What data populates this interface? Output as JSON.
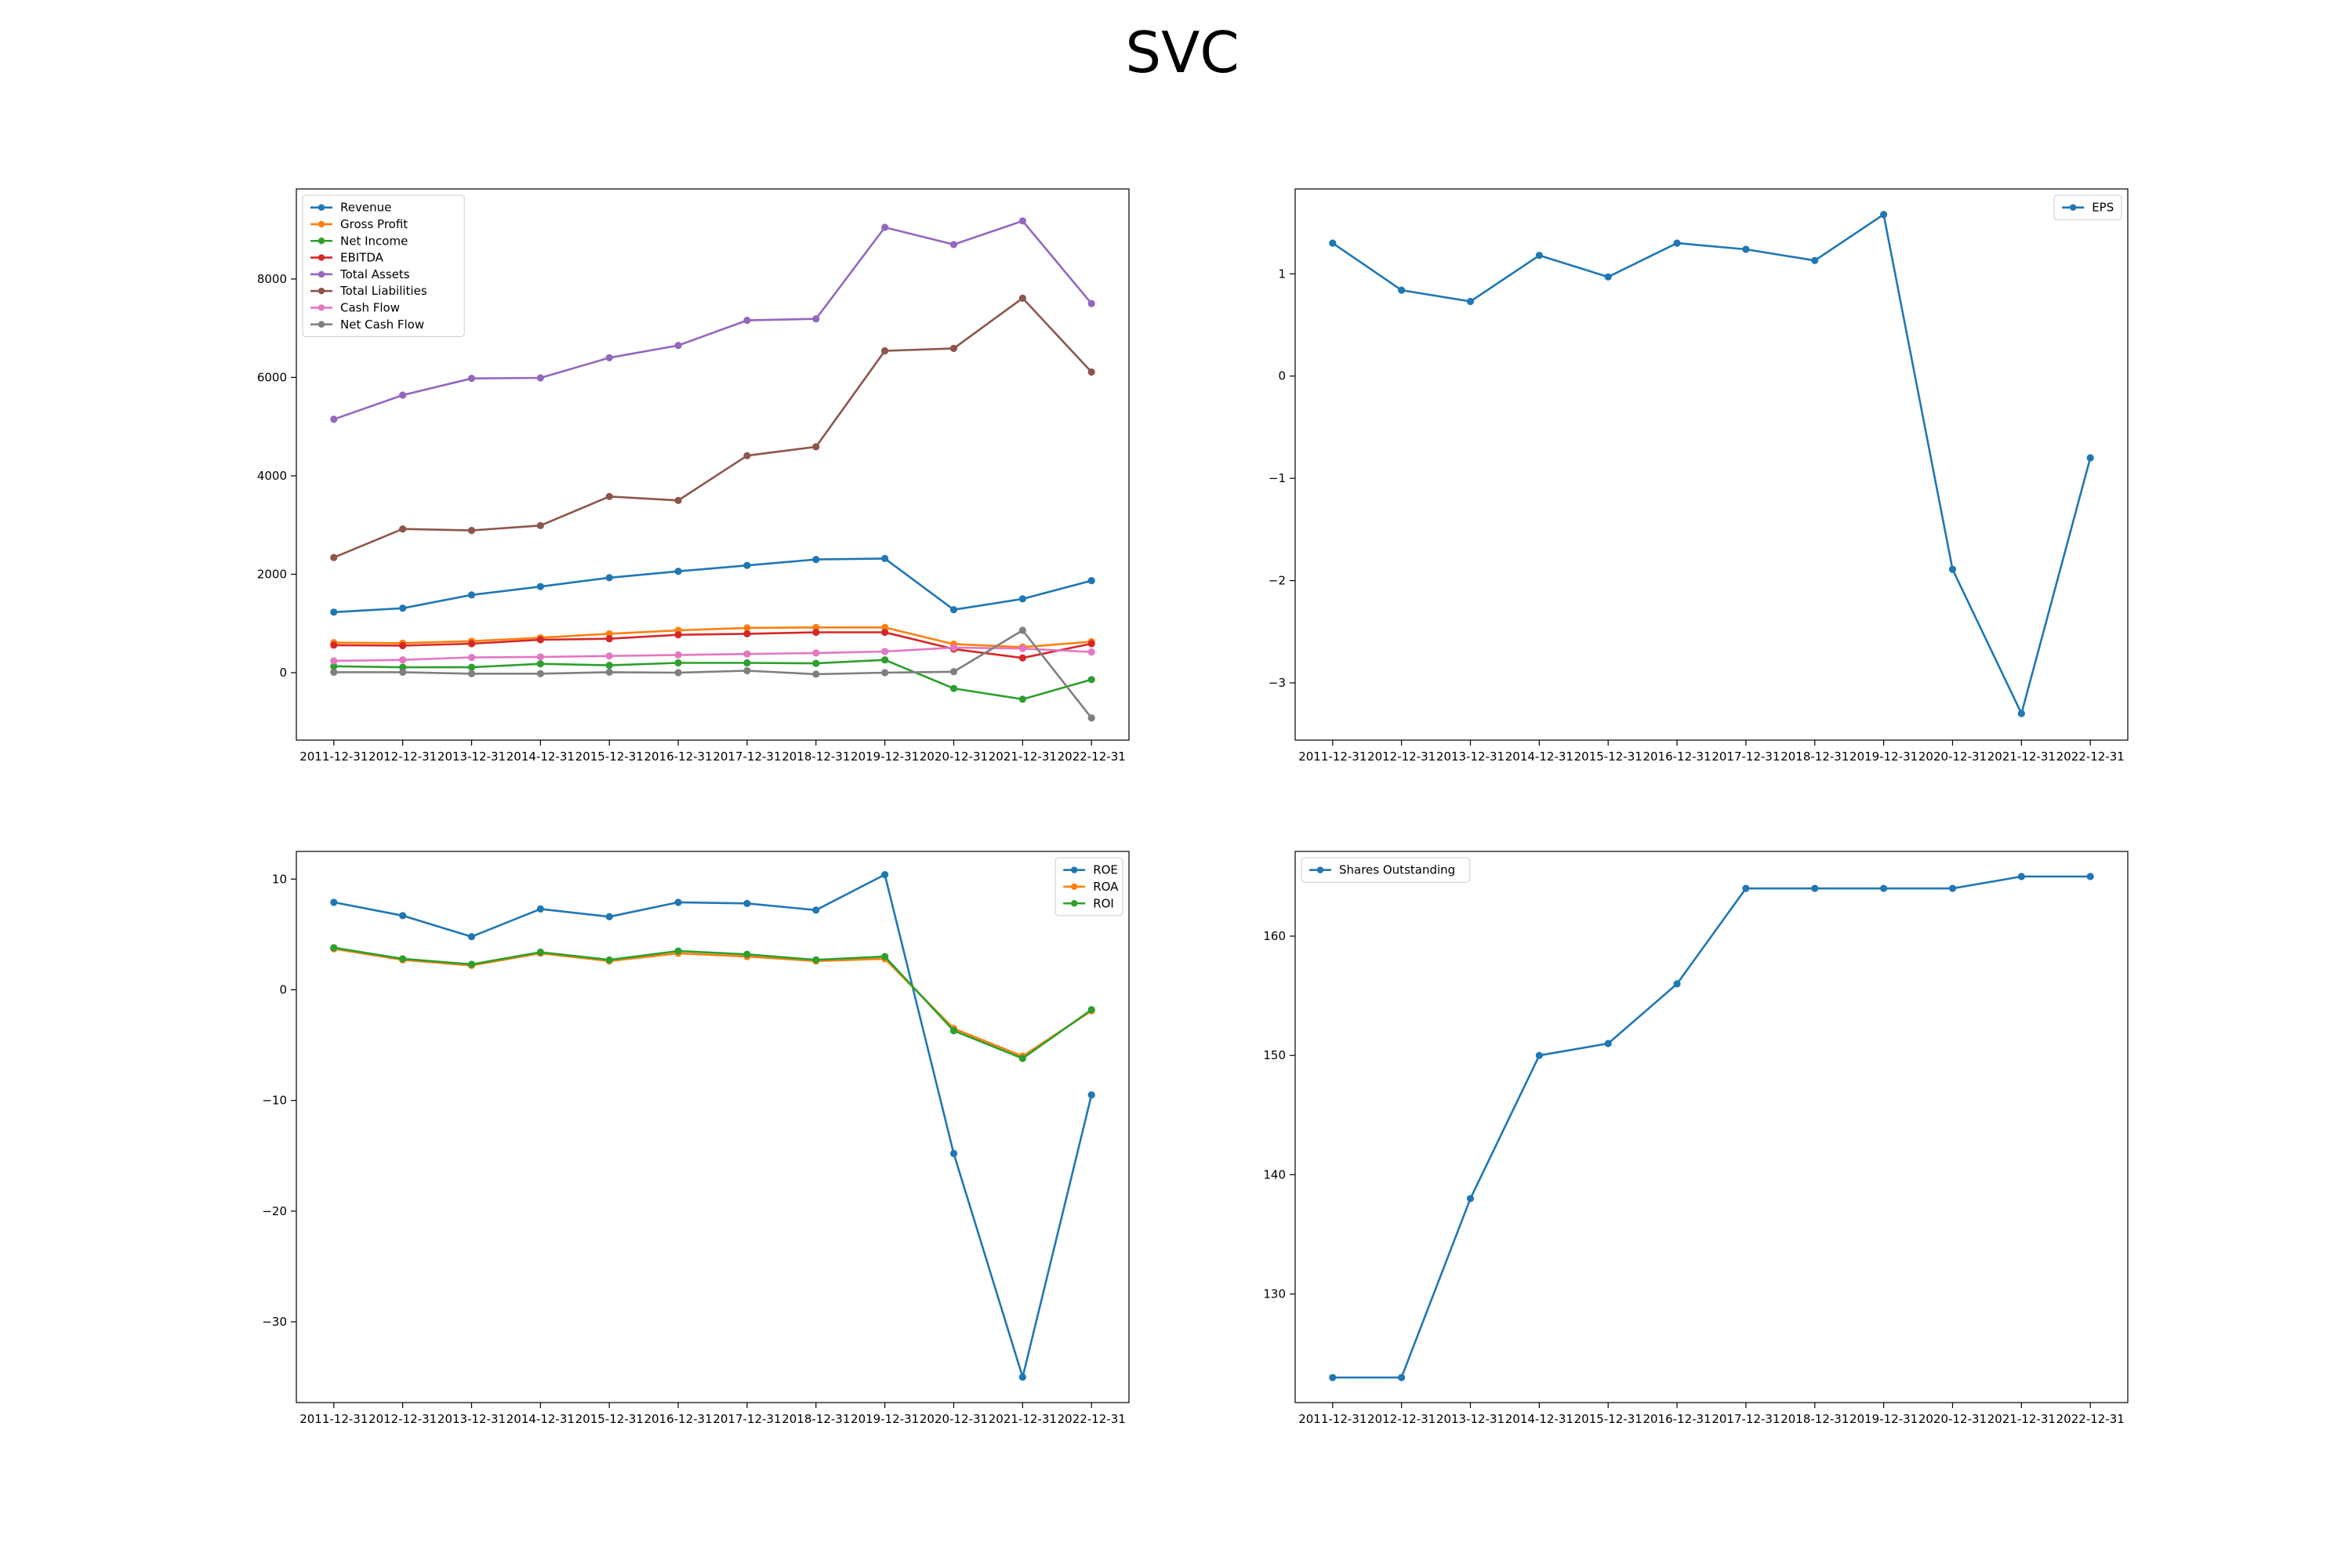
{
  "figure": {
    "title": "SVC"
  },
  "chart_data": [
    {
      "type": "line",
      "categories": [
        "2011-12-31",
        "2012-12-31",
        "2013-12-31",
        "2014-12-31",
        "2015-12-31",
        "2016-12-31",
        "2017-12-31",
        "2018-12-31",
        "2019-12-31",
        "2020-12-31",
        "2021-12-31",
        "2022-12-31"
      ],
      "ylim": [
        -1370,
        9830
      ],
      "yticks": [
        0,
        2000,
        4000,
        6000,
        8000
      ],
      "ytick_labels": [
        "0",
        "2000",
        "4000",
        "6000",
        "8000"
      ],
      "legend_position": "upper left",
      "grid": false,
      "series": [
        {
          "name": "Revenue",
          "color": "#1f77b4",
          "values": [
            1230,
            1310,
            1580,
            1750,
            1930,
            2060,
            2180,
            2300,
            2320,
            1280,
            1500,
            1870
          ]
        },
        {
          "name": "Gross Profit",
          "color": "#ff7f0e",
          "values": [
            610,
            600,
            640,
            710,
            790,
            860,
            910,
            920,
            920,
            580,
            520,
            630
          ]
        },
        {
          "name": "Net Income",
          "color": "#2ca02c",
          "values": [
            130,
            110,
            110,
            180,
            150,
            200,
            200,
            190,
            260,
            -320,
            -540,
            -140
          ]
        },
        {
          "name": "EBITDA",
          "color": "#d62728",
          "values": [
            560,
            550,
            590,
            670,
            690,
            770,
            790,
            820,
            820,
            480,
            300,
            590
          ]
        },
        {
          "name": "Total Assets",
          "color": "#9467bd",
          "values": [
            5150,
            5640,
            5980,
            5990,
            6400,
            6650,
            7160,
            7190,
            9050,
            8700,
            9180,
            7500
          ]
        },
        {
          "name": "Total Liabilities",
          "color": "#8c564b",
          "values": [
            2340,
            2920,
            2890,
            2990,
            3580,
            3500,
            4410,
            4590,
            6540,
            6590,
            7610,
            6110
          ]
        },
        {
          "name": "Cash Flow",
          "color": "#e377c2",
          "values": [
            240,
            260,
            310,
            320,
            340,
            360,
            380,
            400,
            430,
            510,
            490,
            420
          ]
        },
        {
          "name": "Net Cash Flow",
          "color": "#7f7f7f",
          "values": [
            10,
            10,
            -20,
            -20,
            10,
            0,
            40,
            -30,
            0,
            20,
            860,
            -920
          ]
        }
      ]
    },
    {
      "type": "line",
      "categories": [
        "2011-12-31",
        "2012-12-31",
        "2013-12-31",
        "2014-12-31",
        "2015-12-31",
        "2016-12-31",
        "2017-12-31",
        "2018-12-31",
        "2019-12-31",
        "2020-12-31",
        "2021-12-31",
        "2022-12-31"
      ],
      "ylim": [
        -3.56,
        1.83
      ],
      "yticks": [
        -3,
        -2,
        -1,
        0,
        1
      ],
      "ytick_labels": [
        "−3",
        "−2",
        "−1",
        "0",
        "1"
      ],
      "legend_position": "upper right",
      "grid": false,
      "series": [
        {
          "name": "EPS",
          "color": "#1f77b4",
          "values": [
            1.3,
            0.84,
            0.73,
            1.18,
            0.97,
            1.3,
            1.24,
            1.13,
            1.58,
            -1.89,
            -3.3,
            -0.8
          ]
        }
      ]
    },
    {
      "type": "line",
      "categories": [
        "2011-12-31",
        "2012-12-31",
        "2013-12-31",
        "2014-12-31",
        "2015-12-31",
        "2016-12-31",
        "2017-12-31",
        "2018-12-31",
        "2019-12-31",
        "2020-12-31",
        "2021-12-31",
        "2022-12-31"
      ],
      "ylim": [
        -37.3,
        12.5
      ],
      "yticks": [
        -30,
        -20,
        -10,
        0,
        10
      ],
      "ytick_labels": [
        "−30",
        "−20",
        "−10",
        "0",
        "10"
      ],
      "legend_position": "upper right",
      "grid": false,
      "series": [
        {
          "name": "ROE",
          "color": "#1f77b4",
          "values": [
            7.9,
            6.7,
            4.8,
            7.3,
            6.6,
            7.9,
            7.8,
            7.2,
            10.4,
            -14.8,
            -35.0,
            -9.5
          ]
        },
        {
          "name": "ROA",
          "color": "#ff7f0e",
          "values": [
            3.7,
            2.7,
            2.2,
            3.3,
            2.6,
            3.3,
            3.0,
            2.6,
            2.8,
            -3.5,
            -6.0,
            -1.9
          ]
        },
        {
          "name": "ROI",
          "color": "#2ca02c",
          "values": [
            3.8,
            2.8,
            2.3,
            3.4,
            2.7,
            3.5,
            3.2,
            2.7,
            3.0,
            -3.7,
            -6.2,
            -1.8
          ]
        }
      ]
    },
    {
      "type": "line",
      "categories": [
        "2011-12-31",
        "2012-12-31",
        "2013-12-31",
        "2014-12-31",
        "2015-12-31",
        "2016-12-31",
        "2017-12-31",
        "2018-12-31",
        "2019-12-31",
        "2020-12-31",
        "2021-12-31",
        "2022-12-31"
      ],
      "ylim": [
        120.9,
        167.1
      ],
      "yticks": [
        130,
        140,
        150,
        160
      ],
      "ytick_labels": [
        "130",
        "140",
        "150",
        "160"
      ],
      "legend_position": "upper left",
      "grid": false,
      "series": [
        {
          "name": "Shares Outstanding",
          "color": "#1f77b4",
          "values": [
            123,
            123,
            138,
            150,
            151,
            156,
            164,
            164,
            164,
            164,
            165,
            165
          ]
        }
      ]
    }
  ]
}
